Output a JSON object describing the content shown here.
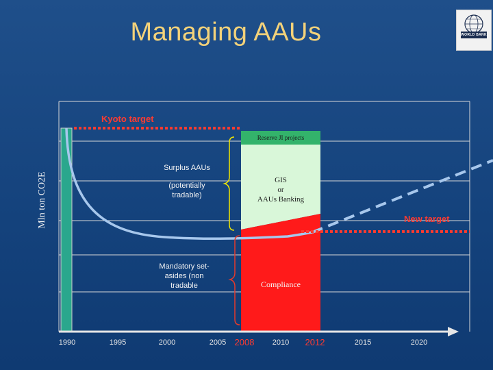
{
  "title": "Managing AAUs",
  "logo": {
    "text": "WORLD BANK"
  },
  "y_axis_label": "Mln ton CO2E",
  "labels": {
    "kyoto_target": "Kyoto target",
    "new_target": "New target",
    "reserve_ji": "Reserve JI projects",
    "gis_line1": "GIS",
    "gis_line2": "or",
    "gis_line3": "AAUs Banking",
    "compliance": "Compliance",
    "surplus_line1": "Surplus AAUs",
    "surplus_line2": "(potentially",
    "surplus_line3": "tradable)",
    "mandatory_line1": "Mandatory set-",
    "mandatory_line2": "asides (non",
    "mandatory_line3": "tradable"
  },
  "x_ticks": [
    {
      "label": "1990",
      "highlight": false
    },
    {
      "label": "1995",
      "highlight": false
    },
    {
      "label": "2000",
      "highlight": false
    },
    {
      "label": "2005",
      "highlight": false
    },
    {
      "label": "2008",
      "highlight": true
    },
    {
      "label": "2010",
      "highlight": false
    },
    {
      "label": "2012",
      "highlight": true
    },
    {
      "label": "2015",
      "highlight": false
    },
    {
      "label": "2020",
      "highlight": false
    }
  ],
  "colors": {
    "kyoto": "#ff3b30",
    "curve": "#a7c7ec",
    "reserve_box": "#33b36b",
    "gis_box": "#d9f7d9",
    "compliance_box": "#ff1a1a",
    "bar_1990": "#2aa78d",
    "brace": "#f2e600"
  }
}
